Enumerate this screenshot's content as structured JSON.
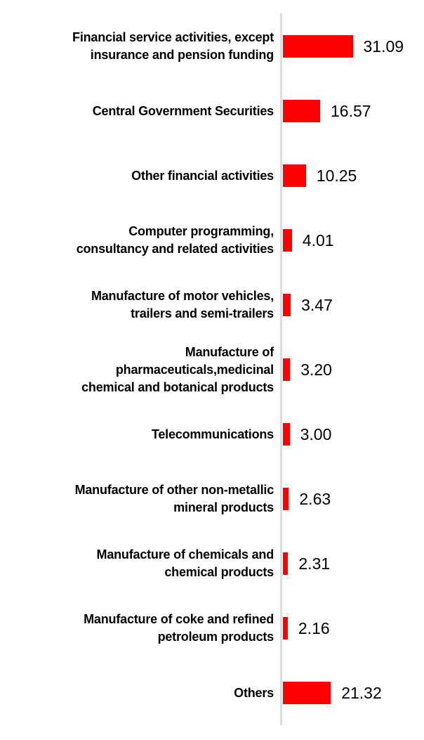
{
  "chart_data": {
    "type": "bar",
    "orientation": "horizontal",
    "title": "",
    "xlabel": "",
    "ylabel": "",
    "legend": "none",
    "grid": "off",
    "axis_line_side": "left",
    "bar_color": "#ff0000",
    "axis_color": "#dcdcdc",
    "text_color": "#000000",
    "value_range_hint": [
      0,
      31.09
    ],
    "categories": [
      "Financial service activities, except\ninsurance and pension funding",
      "Central Government Securities",
      "Other financial activities",
      "Computer programming,\nconsultancy and related activities",
      "Manufacture of motor vehicles,\ntrailers and semi-trailers",
      "Manufacture of\npharmaceuticals,medicinal\nchemical and botanical products",
      "Telecommunications",
      "Manufacture of other non-metallic\nmineral products",
      "Manufacture of chemicals and\nchemical products",
      "Manufacture of coke and refined\npetroleum products",
      "Others"
    ],
    "values": [
      31.09,
      16.57,
      10.25,
      4.01,
      3.47,
      3.2,
      3.0,
      2.63,
      2.31,
      2.16,
      21.32
    ],
    "value_labels": [
      "31.09",
      "16.57",
      "10.25",
      "4.01",
      "3.47",
      "3.20",
      "3.00",
      "2.63",
      "2.31",
      "2.16",
      "21.32"
    ]
  }
}
